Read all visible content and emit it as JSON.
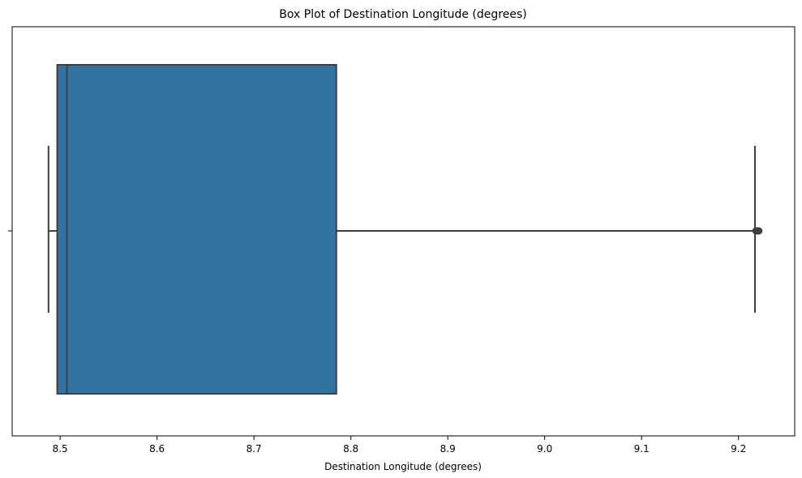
{
  "chart_data": {
    "type": "box",
    "title": "Box Plot of Destination Longitude (degrees)",
    "xlabel": "Destination Longitude (degrees)",
    "ylabel": "",
    "orientation": "horizontal",
    "xlim": [
      8.4505,
      9.258
    ],
    "xticks": [
      8.5,
      8.6,
      8.7,
      8.8,
      8.9,
      9.0,
      9.1,
      9.2
    ],
    "xtick_labels": [
      "8.5",
      "8.6",
      "8.7",
      "8.8",
      "8.9",
      "9.0",
      "9.1",
      "9.2"
    ],
    "box": {
      "whisker_low": 8.488,
      "q1": 8.497,
      "median": 8.507,
      "q3": 8.785,
      "whisker_high": 9.217,
      "outliers": [
        9.218,
        9.219,
        9.22,
        9.221
      ]
    },
    "box_color": "#3274a1",
    "line_color": "#3f3f3f",
    "grid": false
  }
}
